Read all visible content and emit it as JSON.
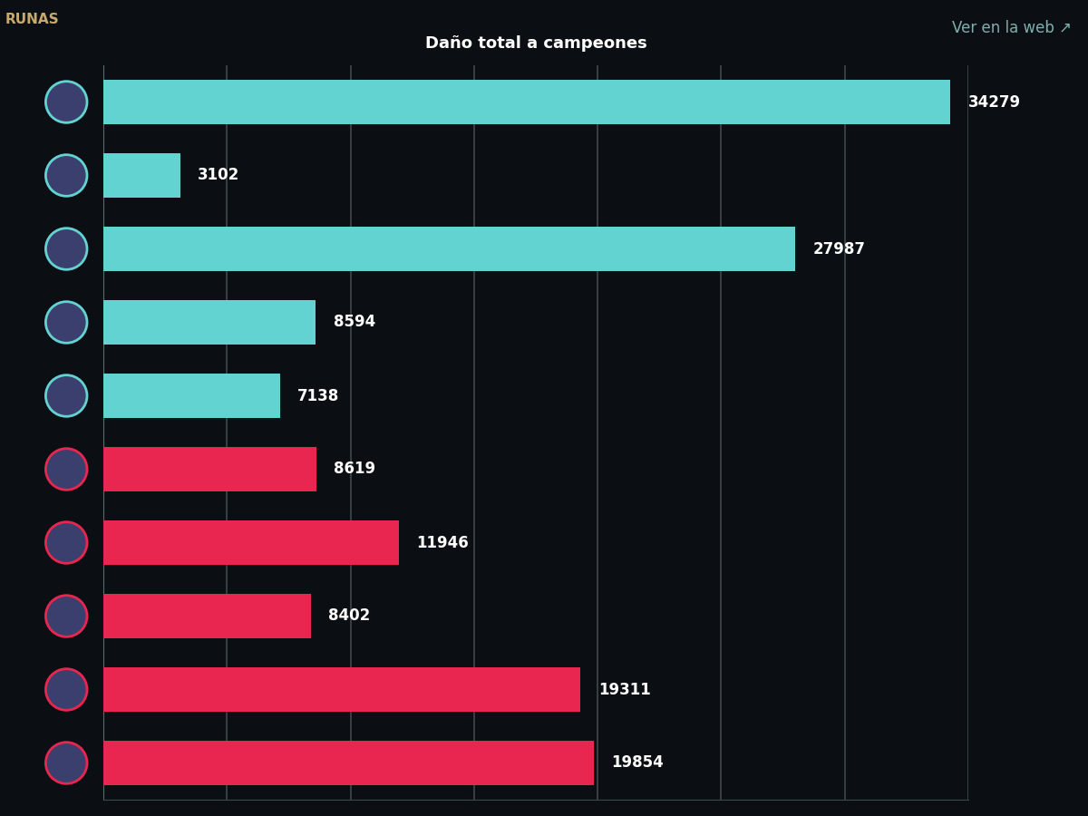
{
  "chart_data": {
    "type": "bar",
    "orientation": "horizontal",
    "title": "Daño total a campeones",
    "annotations": [
      "RUNAS",
      "Ver en la web ↗"
    ],
    "categories": [
      null,
      null,
      null,
      null,
      null,
      null,
      null,
      null,
      null,
      null
    ],
    "values": [
      34279,
      3102,
      27987,
      8594,
      7138,
      8619,
      11946,
      8402,
      19311,
      19854
    ],
    "colors": [
      "#63d3d1",
      "#63d3d1",
      "#63d3d1",
      "#63d3d1",
      "#63d3d1",
      "#e8264f",
      "#e8264f",
      "#e8264f",
      "#e8264f",
      "#e8264f"
    ],
    "xlim": [
      0,
      35000
    ],
    "xticks": [
      0,
      5000,
      10000,
      15000,
      20000,
      25000,
      30000,
      35000
    ],
    "grid": true,
    "data_labels": true,
    "tick_labels": false
  }
}
